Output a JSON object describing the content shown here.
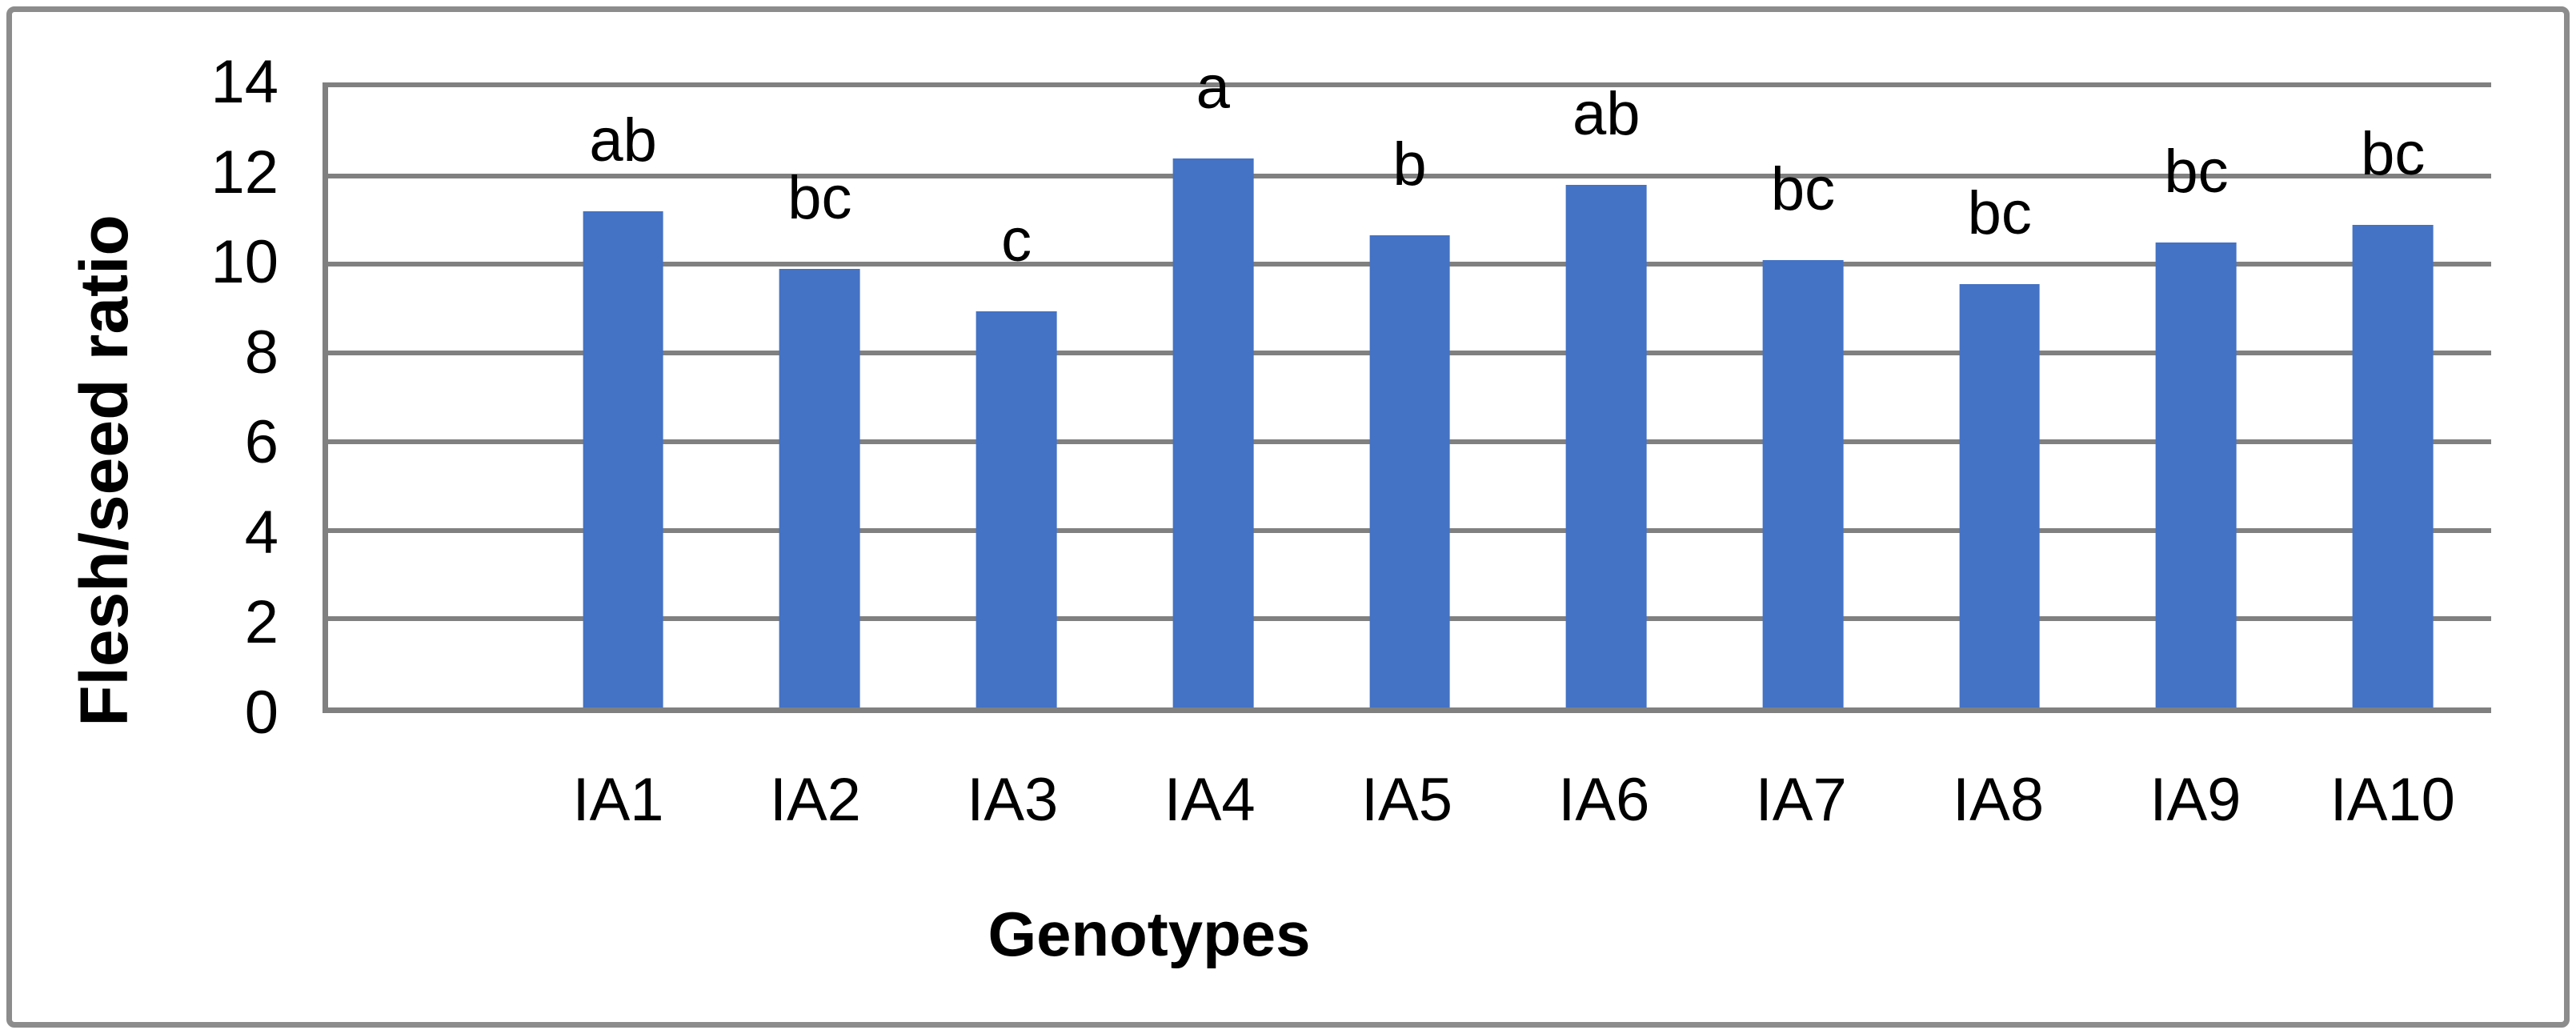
{
  "chart_data": {
    "type": "bar",
    "title": "",
    "xlabel": "Genotypes",
    "ylabel": "Flesh/seed ratio",
    "categories": [
      "IA1",
      "IA2",
      "IA3",
      "IA4",
      "IA5",
      "IA6",
      "IA7",
      "IA8",
      "IA9",
      "IA10"
    ],
    "values": [
      11.2,
      9.9,
      8.95,
      12.4,
      10.65,
      11.8,
      10.1,
      9.55,
      10.5,
      10.9
    ],
    "significance_letters": [
      "ab",
      "bc",
      "c",
      "a",
      "b",
      "ab",
      "bc",
      "bc",
      "bc",
      "bc"
    ],
    "ylim": [
      0,
      14
    ],
    "yticks": [
      0,
      2,
      4,
      6,
      8,
      10,
      12,
      14
    ],
    "grid": true,
    "legend_position": "none",
    "left_gap_slots": 1,
    "bar_color": "#4472C4",
    "gridline_color": "#808080",
    "text_color": "#000000",
    "frame_color": "#8c8c8c"
  }
}
